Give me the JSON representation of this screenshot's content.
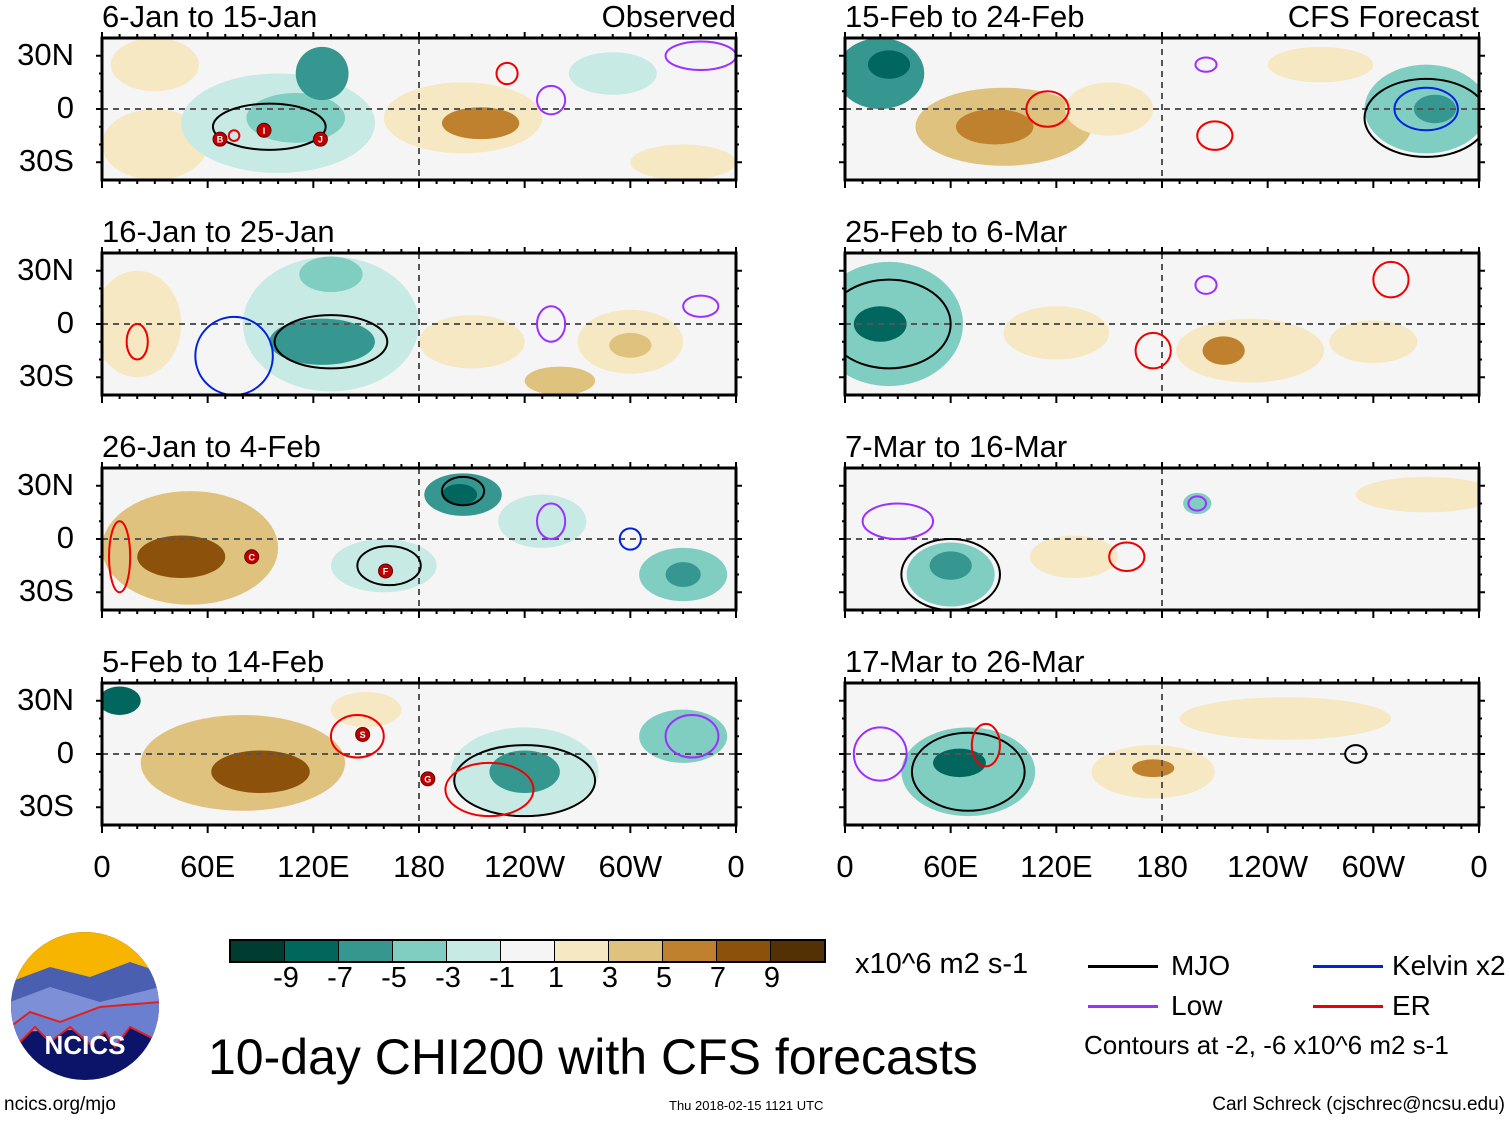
{
  "headers": {
    "left": "Observed",
    "right": "CFS Forecast"
  },
  "lat_labels": [
    "30N",
    "0",
    "30S"
  ],
  "lon_labels": [
    "0",
    "60E",
    "120E",
    "180",
    "120W",
    "60W",
    "0"
  ],
  "colorbar": {
    "colors": [
      "#003c30",
      "#01665e",
      "#35978f",
      "#80cdc1",
      "#c7eae5",
      "#f5f5f5",
      "#f6e8c3",
      "#dfc27d",
      "#bf812d",
      "#8c510a",
      "#543005"
    ],
    "labels": [
      "-9",
      "-7",
      "-5",
      "-3",
      "-1",
      "1",
      "3",
      "5",
      "7",
      "9"
    ],
    "units": "x10^6 m2 s-1"
  },
  "legend": {
    "items": [
      {
        "label": "MJO",
        "color": "#000000"
      },
      {
        "label": "Kelvin x2",
        "color": "#0022dd"
      },
      {
        "label": "Low",
        "color": "#9b30ff"
      },
      {
        "label": "ER",
        "color": "#ee0000"
      }
    ],
    "note": "Contours at -2, -6 x10^6 m2 s-1"
  },
  "title": "10-day CHI200 with CFS forecasts",
  "footer": {
    "left": "ncics.org/mjo",
    "center": "Thu 2018-02-15 1121 UTC",
    "right": "Carl Schreck (cjschrec@ncsu.edu)"
  },
  "logo_text": "NCICS",
  "chart_data": {
    "type": "heatmap",
    "variable": "10-day CHI200 anomaly",
    "units": "x10^6 m2 s-1",
    "lon_range": [
      0,
      360
    ],
    "lat_range": [
      -40,
      40
    ],
    "levels": [
      -9,
      -7,
      -5,
      -3,
      -1,
      1,
      3,
      5,
      7,
      9
    ],
    "panels": [
      {
        "title": "6-Jan to 15-Jan",
        "source": "Observed",
        "features": [
          [
            30,
            25,
            25,
            15,
            3
          ],
          [
            30,
            -20,
            30,
            20,
            1.5
          ],
          [
            100,
            -8,
            55,
            28,
            -2
          ],
          [
            110,
            -5,
            28,
            14,
            -4
          ],
          [
            125,
            20,
            15,
            15,
            -5
          ],
          [
            205,
            -5,
            45,
            20,
            2
          ],
          [
            215,
            -8,
            22,
            9,
            5.5
          ],
          [
            290,
            20,
            25,
            12,
            -2
          ],
          [
            330,
            -30,
            30,
            10,
            1.5
          ]
        ],
        "contours": [
          [
            "MJO",
            95,
            -10,
            32,
            13
          ],
          [
            "Low",
            340,
            30,
            20,
            8
          ],
          [
            "ER",
            230,
            20,
            6,
            6
          ],
          [
            "ER",
            75,
            -15,
            3,
            3
          ],
          [
            "Low",
            255,
            5,
            8,
            8
          ]
        ],
        "storms": [
          [
            "B",
            67,
            -17
          ],
          [
            "I",
            92,
            -12
          ],
          [
            "J",
            124,
            -17
          ]
        ]
      },
      {
        "title": "16-Jan to 25-Jan",
        "source": "Observed",
        "features": [
          [
            20,
            0,
            25,
            30,
            2
          ],
          [
            130,
            0,
            50,
            38,
            -2
          ],
          [
            125,
            -10,
            30,
            13,
            -5.5
          ],
          [
            130,
            28,
            18,
            10,
            -4
          ],
          [
            300,
            -10,
            30,
            18,
            3
          ],
          [
            300,
            -12,
            12,
            7,
            5
          ],
          [
            260,
            -32,
            20,
            8,
            5
          ],
          [
            210,
            -10,
            30,
            15,
            1.5
          ]
        ],
        "contours": [
          [
            "MJO",
            130,
            -10,
            32,
            15
          ],
          [
            "Kelvin x2",
            75,
            -18,
            22,
            22
          ],
          [
            "ER",
            20,
            -10,
            6,
            10
          ],
          [
            "Low",
            255,
            0,
            8,
            10
          ],
          [
            "Low",
            340,
            10,
            10,
            6
          ]
        ],
        "storms": []
      },
      {
        "title": "26-Jan to 4-Feb",
        "source": "Observed",
        "features": [
          [
            50,
            -5,
            50,
            32,
            4
          ],
          [
            45,
            -10,
            25,
            12,
            8
          ],
          [
            160,
            -15,
            30,
            15,
            -2
          ],
          [
            205,
            25,
            22,
            12,
            -5
          ],
          [
            203,
            25,
            10,
            6,
            -8
          ],
          [
            330,
            -20,
            25,
            15,
            -3.5
          ],
          [
            330,
            -20,
            10,
            7,
            -5.5
          ],
          [
            250,
            10,
            25,
            15,
            -2
          ]
        ],
        "contours": [
          [
            "MJO",
            163,
            -15,
            18,
            11
          ],
          [
            "MJO",
            205,
            27,
            12,
            8
          ],
          [
            "ER",
            10,
            -10,
            6,
            20
          ],
          [
            "Low",
            255,
            10,
            8,
            10
          ],
          [
            "Kelvin x2",
            300,
            0,
            6,
            6
          ]
        ],
        "storms": [
          [
            "C",
            85,
            -10
          ],
          [
            "F",
            161,
            -18
          ]
        ]
      },
      {
        "title": "5-Feb to 14-Feb",
        "source": "Observed",
        "features": [
          [
            80,
            -5,
            58,
            27,
            5
          ],
          [
            90,
            -10,
            28,
            12,
            9
          ],
          [
            150,
            25,
            20,
            10,
            2
          ],
          [
            240,
            -10,
            42,
            25,
            -2.5
          ],
          [
            240,
            -10,
            20,
            12,
            -5.5
          ],
          [
            330,
            10,
            25,
            15,
            -3
          ],
          [
            10,
            30,
            12,
            8,
            -8
          ]
        ],
        "contours": [
          [
            "MJO",
            240,
            -15,
            40,
            20
          ],
          [
            "ER",
            220,
            -20,
            25,
            15
          ],
          [
            "ER",
            145,
            10,
            15,
            12
          ],
          [
            "Low",
            335,
            10,
            15,
            12
          ]
        ],
        "storms": [
          [
            "S",
            148,
            11
          ],
          [
            "G",
            185,
            -14
          ]
        ]
      },
      {
        "title": "15-Feb to 24-Feb",
        "source": "CFS Forecast",
        "features": [
          [
            90,
            -10,
            50,
            22,
            4
          ],
          [
            85,
            -10,
            22,
            10,
            7
          ],
          [
            20,
            20,
            25,
            20,
            -5
          ],
          [
            25,
            25,
            12,
            8,
            -8
          ],
          [
            150,
            0,
            25,
            15,
            3
          ],
          [
            330,
            0,
            35,
            25,
            -4
          ],
          [
            335,
            0,
            12,
            8,
            -6
          ],
          [
            270,
            25,
            30,
            10,
            2
          ]
        ],
        "contours": [
          [
            "MJO",
            330,
            -5,
            35,
            22
          ],
          [
            "Kelvin x2",
            330,
            0,
            18,
            12
          ],
          [
            "ER",
            115,
            0,
            12,
            10
          ],
          [
            "ER",
            210,
            -15,
            10,
            8
          ],
          [
            "Low",
            205,
            25,
            6,
            4
          ]
        ],
        "storms": []
      },
      {
        "title": "25-Feb to 6-Mar",
        "source": "CFS Forecast",
        "features": [
          [
            25,
            0,
            42,
            35,
            -4
          ],
          [
            20,
            0,
            15,
            10,
            -8
          ],
          [
            120,
            -5,
            30,
            15,
            3
          ],
          [
            230,
            -15,
            42,
            18,
            3
          ],
          [
            215,
            -15,
            12,
            8,
            6
          ],
          [
            300,
            -10,
            25,
            12,
            2
          ]
        ],
        "contours": [
          [
            "MJO",
            25,
            0,
            35,
            25
          ],
          [
            "ER",
            175,
            -15,
            10,
            10
          ],
          [
            "ER",
            310,
            25,
            10,
            10
          ],
          [
            "Low",
            205,
            22,
            6,
            5
          ]
        ],
        "storms": []
      },
      {
        "title": "7-Mar to 16-Mar",
        "source": "CFS Forecast",
        "features": [
          [
            60,
            -20,
            25,
            18,
            -3
          ],
          [
            60,
            -15,
            12,
            8,
            -5
          ],
          [
            130,
            -10,
            25,
            12,
            2
          ],
          [
            200,
            20,
            8,
            6,
            -4
          ],
          [
            330,
            25,
            40,
            10,
            1.5
          ]
        ],
        "contours": [
          [
            "MJO",
            60,
            -20,
            28,
            20
          ],
          [
            "ER",
            160,
            -10,
            10,
            8
          ],
          [
            "Low",
            30,
            10,
            20,
            10
          ],
          [
            "Low",
            200,
            20,
            5,
            4
          ]
        ],
        "storms": []
      },
      {
        "title": "17-Mar to 26-Mar",
        "source": "CFS Forecast",
        "features": [
          [
            70,
            -10,
            38,
            25,
            -3
          ],
          [
            65,
            -5,
            15,
            8,
            -7
          ],
          [
            175,
            -10,
            35,
            15,
            3
          ],
          [
            175,
            -8,
            12,
            5,
            6
          ],
          [
            250,
            20,
            60,
            12,
            1.5
          ]
        ],
        "contours": [
          [
            "MJO",
            70,
            -10,
            32,
            22
          ],
          [
            "ER",
            80,
            5,
            8,
            12
          ],
          [
            "Low",
            20,
            0,
            15,
            15
          ],
          [
            "MJO",
            290,
            0,
            6,
            5
          ]
        ],
        "storms": []
      }
    ]
  }
}
